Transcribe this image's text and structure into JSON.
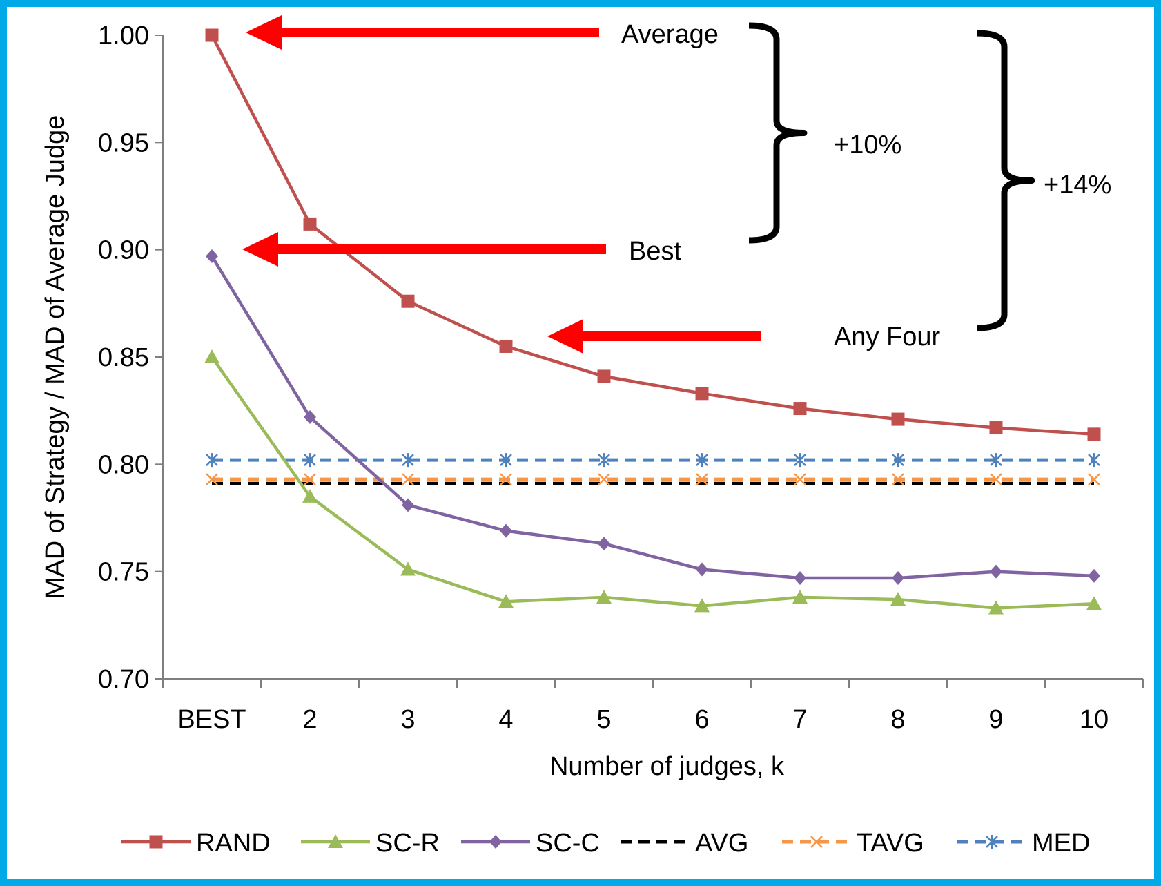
{
  "chart_data": {
    "type": "line",
    "categories": [
      "BEST",
      "2",
      "3",
      "4",
      "5",
      "6",
      "7",
      "8",
      "9",
      "10"
    ],
    "xlabel": "Number of judges, k",
    "ylabel": "MAD of Strategy / MAD of Average Judge",
    "ylim": [
      0.7,
      1.0
    ],
    "yticks": [
      "0.70",
      "0.75",
      "0.80",
      "0.85",
      "0.90",
      "0.95",
      "1.00"
    ],
    "grid": false,
    "legend_position": "bottom",
    "series": [
      {
        "name": "RAND",
        "color": "#C0504D",
        "marker": "square",
        "dash": false,
        "values": [
          1.0,
          0.912,
          0.876,
          0.855,
          0.841,
          0.833,
          0.826,
          0.821,
          0.817,
          0.814
        ]
      },
      {
        "name": "SC-R",
        "color": "#9BBB59",
        "marker": "triangle",
        "dash": false,
        "values": [
          0.85,
          0.785,
          0.751,
          0.736,
          0.738,
          0.734,
          0.738,
          0.737,
          0.733,
          0.735
        ]
      },
      {
        "name": "SC-C",
        "color": "#8064A2",
        "marker": "diamond",
        "dash": false,
        "values": [
          0.897,
          0.822,
          0.781,
          0.769,
          0.763,
          0.751,
          0.747,
          0.747,
          0.75,
          0.748
        ]
      },
      {
        "name": "AVG",
        "color": "#000000",
        "marker": "none",
        "dash": true,
        "values": [
          0.791,
          0.791,
          0.791,
          0.791,
          0.791,
          0.791,
          0.791,
          0.791,
          0.791,
          0.791
        ]
      },
      {
        "name": "TAVG",
        "color": "#F79646",
        "marker": "x",
        "dash": true,
        "values": [
          0.793,
          0.793,
          0.793,
          0.793,
          0.793,
          0.793,
          0.793,
          0.793,
          0.793,
          0.793
        ]
      },
      {
        "name": "MED",
        "color": "#4F81BD",
        "marker": "star",
        "dash": true,
        "values": [
          0.802,
          0.802,
          0.802,
          0.802,
          0.802,
          0.802,
          0.802,
          0.802,
          0.802,
          0.802
        ]
      }
    ],
    "annotations": {
      "arrow_color": "#FF0000",
      "average_label": "Average",
      "best_label": "Best",
      "any_four_label": "Any Four",
      "bracket_small_label": "+10%",
      "bracket_large_label": "+14%"
    }
  }
}
